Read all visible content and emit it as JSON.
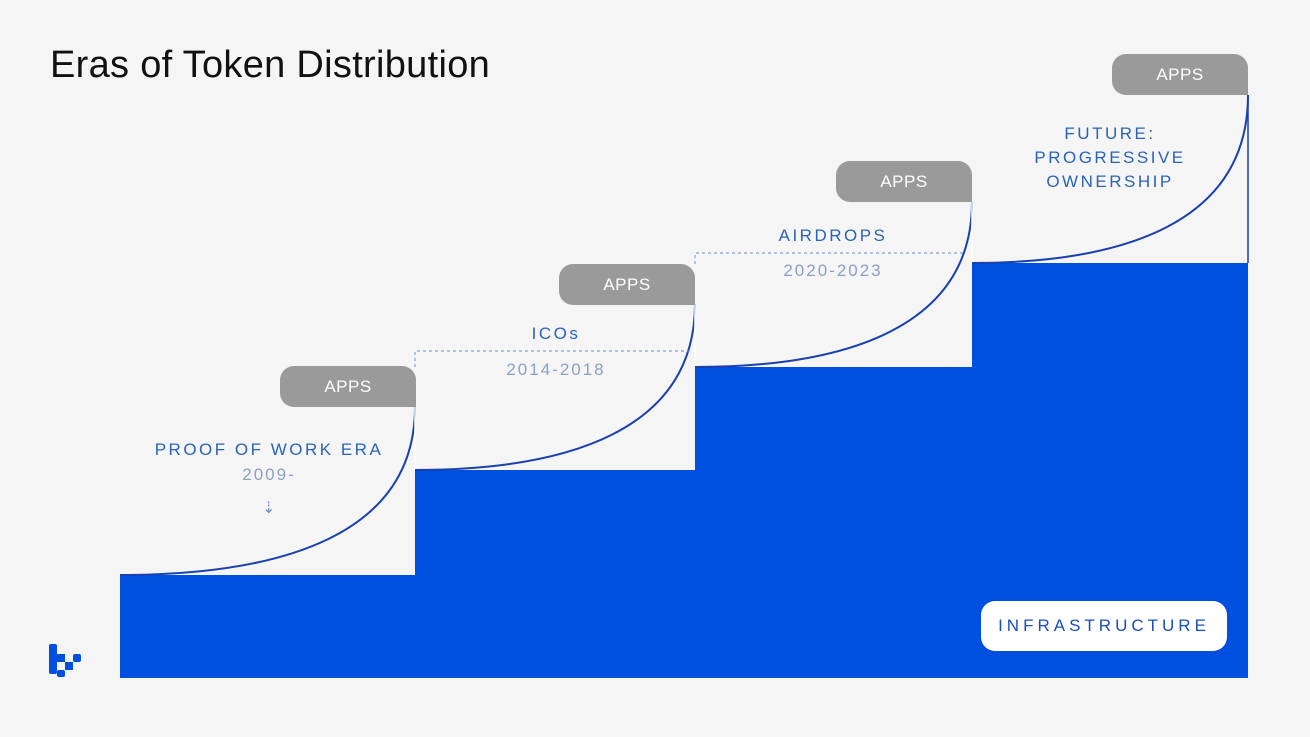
{
  "title": "Eras of Token Distribution",
  "apps_label": "APPS",
  "eras": [
    {
      "name": "PROOF OF WORK ERA",
      "years": "2009-"
    },
    {
      "name": "ICOs",
      "years": "2014-2018"
    },
    {
      "name": "AIRDROPS",
      "years": "2020-2023"
    },
    {
      "name_lines": [
        "FUTURE:",
        "PROGRESSIVE",
        "OWNERSHIP"
      ]
    }
  ],
  "infrastructure_label": "INFRASTRUCTURE",
  "colors": {
    "infrastructure": "#0050e0",
    "curve": "#1a3fae",
    "apps": "#9a9a9a"
  },
  "icons": {
    "arrow": "dotted-down-arrow-icon",
    "logo": "brand-logo-icon"
  }
}
